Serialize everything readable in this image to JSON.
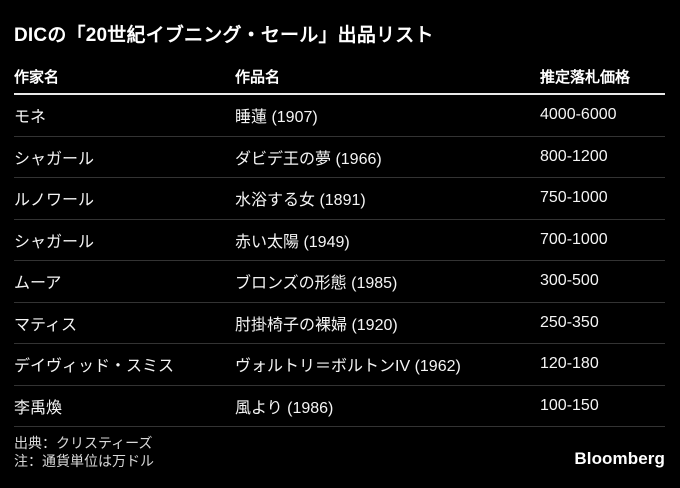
{
  "chart_data": {
    "type": "table",
    "title": "DICの「20世紀イブニング・セール」出品リスト",
    "columns": [
      "作家名",
      "作品名",
      "推定落札価格"
    ],
    "rows": [
      {
        "artist": "モネ",
        "work": "睡蓮 (1907)",
        "estimate": "4000-6000"
      },
      {
        "artist": "シャガール",
        "work": "ダビデ王の夢 (1966)",
        "estimate": "800-1200"
      },
      {
        "artist": "ルノワール",
        "work": "水浴する女 (1891)",
        "estimate": "750-1000"
      },
      {
        "artist": "シャガール",
        "work": "赤い太陽 (1949)",
        "estimate": "700-1000"
      },
      {
        "artist": "ムーア",
        "work": "ブロンズの形態 (1985)",
        "estimate": "300-500"
      },
      {
        "artist": "マティス",
        "work": "肘掛椅子の裸婦 (1920)",
        "estimate": "250-350"
      },
      {
        "artist": "デイヴィッド・スミス",
        "work": "ヴォルトリ＝ボルトンIV (1962)",
        "estimate": "120-180"
      },
      {
        "artist": "李禹煥",
        "work": "風より (1986)",
        "estimate": "100-150"
      }
    ],
    "source": "出典：クリスティーズ",
    "note": "注：通貨単位は万ドル"
  },
  "footer": {
    "brand": "Bloomberg"
  },
  "colors": {
    "background": "#000000",
    "title_text": "#ffffff",
    "row_text": "#f5f5f5",
    "muted_text": "#d9d9d9",
    "header_rule": "#e8e8e8",
    "row_separator": "#333333"
  }
}
